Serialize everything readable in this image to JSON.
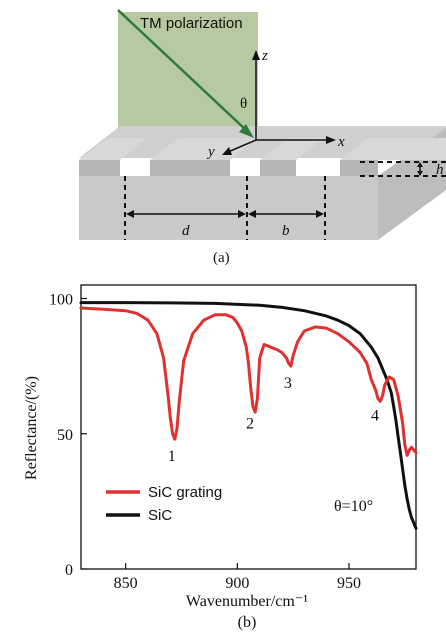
{
  "diagram": {
    "polarization_label": "TM polarization",
    "axis_z": "z",
    "axis_x": "x",
    "axis_y": "y",
    "angle_symbol": "θ",
    "period_label": "d",
    "width_label": "b",
    "height_label": "h",
    "panel_label": "(a)"
  },
  "chart_data": {
    "type": "line",
    "panel_label": "(b)",
    "xlabel": "Wavenumber/cm⁻¹",
    "ylabel": "Reflectance/(%)",
    "xlim": [
      830,
      980
    ],
    "ylim": [
      0,
      105
    ],
    "xticks": [
      850,
      900,
      950
    ],
    "yticks": [
      0,
      50,
      100
    ],
    "angle_annotation": "θ=10°",
    "legend": [
      "SiC grating",
      "SiC"
    ],
    "colors": {
      "SiC grating": "#e03030",
      "SiC": "#111111"
    },
    "series": [
      {
        "name": "SiC grating",
        "x": [
          830,
          840,
          850,
          855,
          860,
          864,
          867,
          869,
          870,
          871,
          872,
          873,
          874,
          876,
          880,
          885,
          890,
          895,
          898,
          900,
          902,
          904,
          905,
          906,
          907,
          908,
          909,
          910,
          912,
          915,
          918,
          920,
          922,
          923,
          924,
          925,
          927,
          930,
          935,
          940,
          945,
          950,
          955,
          958,
          960,
          962,
          963,
          964,
          965,
          966,
          968,
          970,
          972,
          974,
          975,
          976,
          977,
          978,
          979,
          980
        ],
        "y": [
          96.5,
          96,
          95.5,
          94.5,
          92,
          87,
          78,
          64,
          56,
          50,
          48,
          52,
          62,
          77,
          87,
          92,
          94,
          94,
          93,
          91,
          88,
          82,
          76,
          67,
          60,
          58,
          63,
          78,
          83,
          82,
          81,
          80,
          78,
          76,
          75,
          79,
          84,
          88,
          89.5,
          89,
          87,
          84,
          80,
          76,
          70,
          66,
          63,
          62,
          64,
          68,
          71,
          70,
          64,
          54,
          46,
          42,
          44,
          45,
          44,
          43
        ]
      },
      {
        "name": "SiC",
        "x": [
          830,
          850,
          870,
          890,
          910,
          920,
          930,
          940,
          945,
          950,
          955,
          960,
          963,
          965,
          967,
          969,
          970,
          971,
          972,
          973,
          974,
          975,
          976,
          977,
          978,
          979,
          980
        ],
        "y": [
          98.5,
          98.5,
          98.4,
          98.2,
          97.5,
          96.7,
          95.5,
          93.5,
          92,
          90,
          87,
          82,
          78,
          74,
          70,
          65,
          60,
          55,
          49,
          43,
          37,
          31,
          26,
          22,
          19,
          17,
          15
        ]
      }
    ],
    "annotations": [
      {
        "text": "1",
        "x": 872
      },
      {
        "text": "2",
        "x": 907
      },
      {
        "text": "3",
        "x": 924
      },
      {
        "text": "4",
        "x": 963
      }
    ]
  }
}
